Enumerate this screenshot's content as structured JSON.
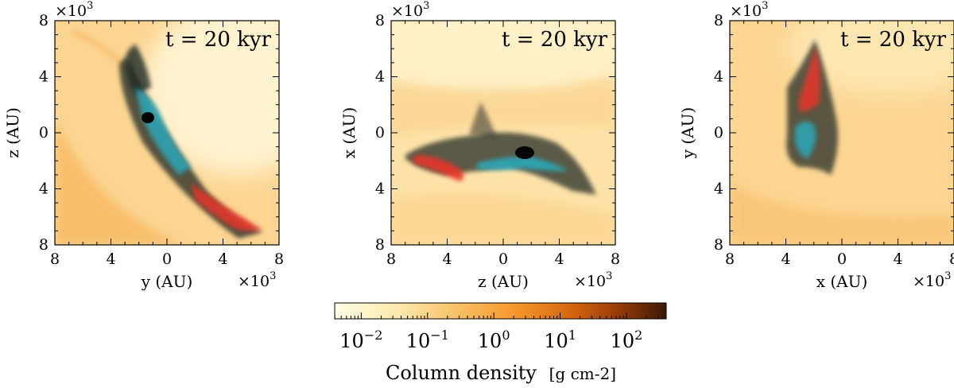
{
  "chart_data": [
    {
      "type": "heatmap",
      "panel": "left",
      "annotation": "t = 20 kyr",
      "xlabel": "y  (AU)",
      "ylabel": "z  (AU)",
      "x_multiplier": "×10",
      "y_multiplier": "×10",
      "multiplier_exp": "3",
      "xlim": [
        -8,
        8
      ],
      "ylim": [
        -8,
        8
      ],
      "x_ticks": [
        8,
        4,
        0,
        4,
        8
      ],
      "y_ticks": [
        8,
        4,
        0,
        4,
        8
      ]
    },
    {
      "type": "heatmap",
      "panel": "middle",
      "annotation": "t = 20 kyr",
      "xlabel": "z  (AU)",
      "ylabel": "x  (AU)",
      "x_multiplier": "×10",
      "y_multiplier": "×10",
      "multiplier_exp": "3",
      "xlim": [
        -8,
        8
      ],
      "ylim": [
        -8,
        8
      ],
      "x_ticks": [
        8,
        4,
        0,
        4,
        8
      ],
      "y_ticks": [
        8,
        4,
        0,
        4,
        8
      ]
    },
    {
      "type": "heatmap",
      "panel": "right",
      "annotation": "t = 20 kyr",
      "xlabel": "x  (AU)",
      "ylabel": "y  (AU)",
      "x_multiplier": "×10",
      "y_multiplier": "×10",
      "multiplier_exp": "3",
      "xlim": [
        -8,
        8
      ],
      "ylim": [
        -8,
        8
      ],
      "x_ticks": [
        8,
        4,
        0,
        4,
        8
      ],
      "y_ticks": [
        8,
        4,
        0,
        4,
        8
      ]
    }
  ],
  "colorbar": {
    "label": "Column density",
    "unit": "[g cm-2]",
    "tick_labels": [
      {
        "base": "10",
        "exp": "−2",
        "value": -2
      },
      {
        "base": "10",
        "exp": "−1",
        "value": -1
      },
      {
        "base": "10",
        "exp": "0",
        "value": 0
      },
      {
        "base": "10",
        "exp": "1",
        "value": 1
      },
      {
        "base": "10",
        "exp": "2",
        "value": 2
      }
    ],
    "log_range": [
      -2.4,
      2.6
    ],
    "colors": [
      "#fffde6",
      "#fce7a9",
      "#f8be63",
      "#f59629",
      "#d3640f",
      "#8f3708",
      "#3b1a07"
    ]
  },
  "colors": {
    "background": "#fde7b3",
    "blue_component": "#2aa8b8",
    "red_component": "#e8362a",
    "dense_gas": "#1c1a18"
  }
}
